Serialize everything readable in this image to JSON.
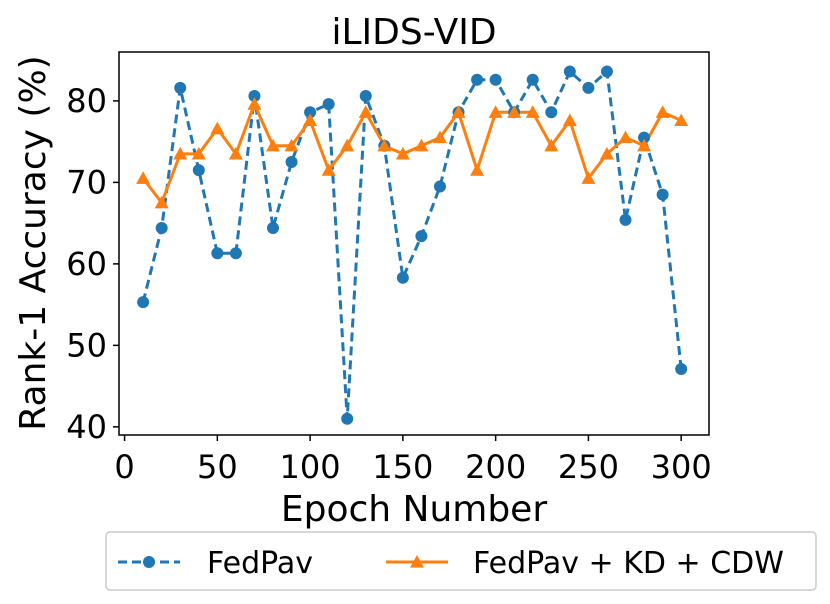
{
  "chart_data": {
    "type": "line",
    "title": "iLIDS-VID",
    "xlabel": "Epoch Number",
    "ylabel": "Rank-1 Accuracy (%)",
    "xlim": [
      -3,
      315
    ],
    "ylim": [
      39,
      86
    ],
    "x_ticks": [
      0,
      50,
      100,
      150,
      200,
      250,
      300
    ],
    "x_tick_labels": [
      "0",
      "50",
      "100",
      "150",
      "200",
      "250",
      "300"
    ],
    "y_ticks": [
      40,
      50,
      60,
      70,
      80
    ],
    "y_tick_labels": [
      "40",
      "50",
      "60",
      "70",
      "80"
    ],
    "grid": false,
    "legend_position": "below",
    "x": [
      10,
      20,
      30,
      40,
      50,
      60,
      70,
      80,
      90,
      100,
      110,
      120,
      130,
      140,
      150,
      160,
      170,
      180,
      190,
      200,
      210,
      220,
      230,
      240,
      250,
      260,
      270,
      280,
      290,
      300
    ],
    "series": [
      {
        "name": "FedPav",
        "color": "#1f77b4",
        "line_style": "dashed",
        "marker": "circle",
        "values": [
          55.3,
          64.4,
          81.6,
          71.5,
          61.3,
          61.3,
          80.6,
          64.4,
          72.5,
          78.6,
          79.6,
          41.0,
          80.6,
          74.5,
          58.3,
          63.4,
          69.5,
          78.6,
          82.6,
          82.6,
          78.6,
          82.6,
          78.6,
          83.6,
          81.6,
          83.6,
          65.4,
          75.5,
          68.5,
          47.1
        ]
      },
      {
        "name": "FedPav + KD + CDW",
        "color": "#ff7f0e",
        "line_style": "solid",
        "marker": "triangle",
        "values": [
          70.5,
          67.5,
          73.5,
          73.5,
          76.6,
          73.5,
          79.6,
          74.5,
          74.5,
          77.6,
          71.5,
          74.5,
          78.6,
          74.5,
          73.5,
          74.5,
          75.5,
          78.6,
          71.5,
          78.6,
          78.6,
          78.6,
          74.5,
          77.6,
          70.5,
          73.5,
          75.5,
          74.5,
          78.6,
          77.6
        ]
      }
    ]
  }
}
